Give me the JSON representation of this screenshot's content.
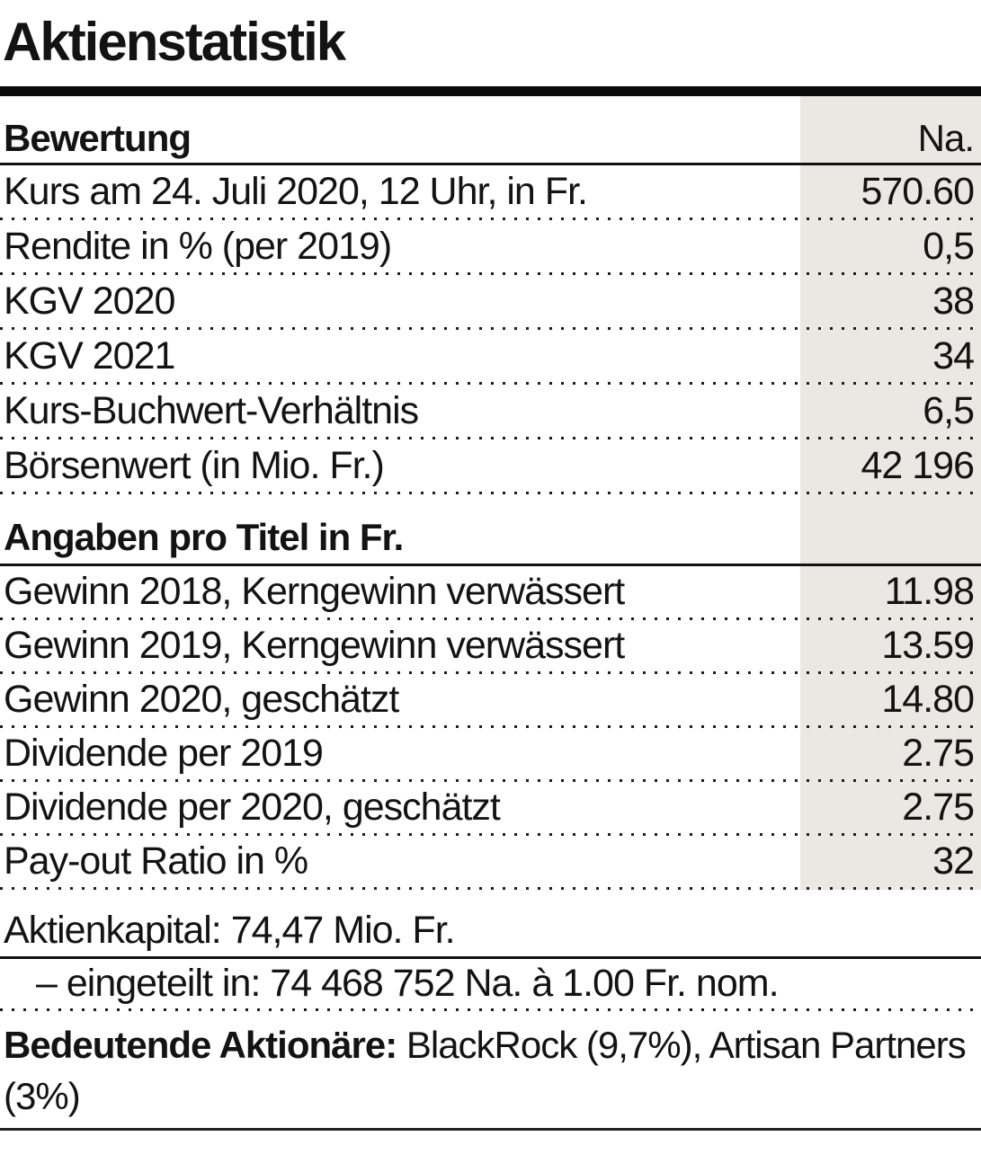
{
  "title": "Aktienstatistik",
  "table": {
    "sections": [
      {
        "heading": "Bewertung",
        "heading_right": "Na.",
        "rows": [
          {
            "label": "Kurs am 24. Juli 2020, 12 Uhr, in Fr.",
            "value": "570.60"
          },
          {
            "label": "Rendite in % (per 2019)",
            "value": "0,5"
          },
          {
            "label": "KGV 2020",
            "value": "38"
          },
          {
            "label": "KGV 2021",
            "value": "34"
          },
          {
            "label": "Kurs-Buchwert-Verhältnis",
            "value": "6,5"
          },
          {
            "label": "Börsenwert (in Mio. Fr.)",
            "value": "42 196"
          }
        ]
      },
      {
        "heading": "Angaben pro Titel in Fr.",
        "rows": [
          {
            "label": "Gewinn 2018, Kerngewinn verwässert",
            "value": "11.98"
          },
          {
            "label": "Gewinn 2019, Kerngewinn verwässert",
            "value": "13.59"
          },
          {
            "label": "Gewinn 2020, geschätzt",
            "value": "14.80"
          },
          {
            "label": "Dividende per 2019",
            "value": "2.75"
          },
          {
            "label": "Dividende per 2020, geschätzt",
            "value": "2.75"
          },
          {
            "label": "Pay-out Ratio in %",
            "value": "32"
          }
        ]
      }
    ]
  },
  "footer": {
    "aktienkapital": "Aktienkapital: 74,47 Mio. Fr.",
    "eingeteilt": "– eingeteilt in: 74 468 752 Na. à 1.00 Fr. nom.",
    "shareholders_label": "Bedeutende Aktionäre:",
    "shareholders_value": " BlackRock (9,7%), Artisan Partners (3%)"
  },
  "colors": {
    "value_column_background": "#e9e8e2",
    "text": "#131313",
    "rule": "#111111"
  }
}
